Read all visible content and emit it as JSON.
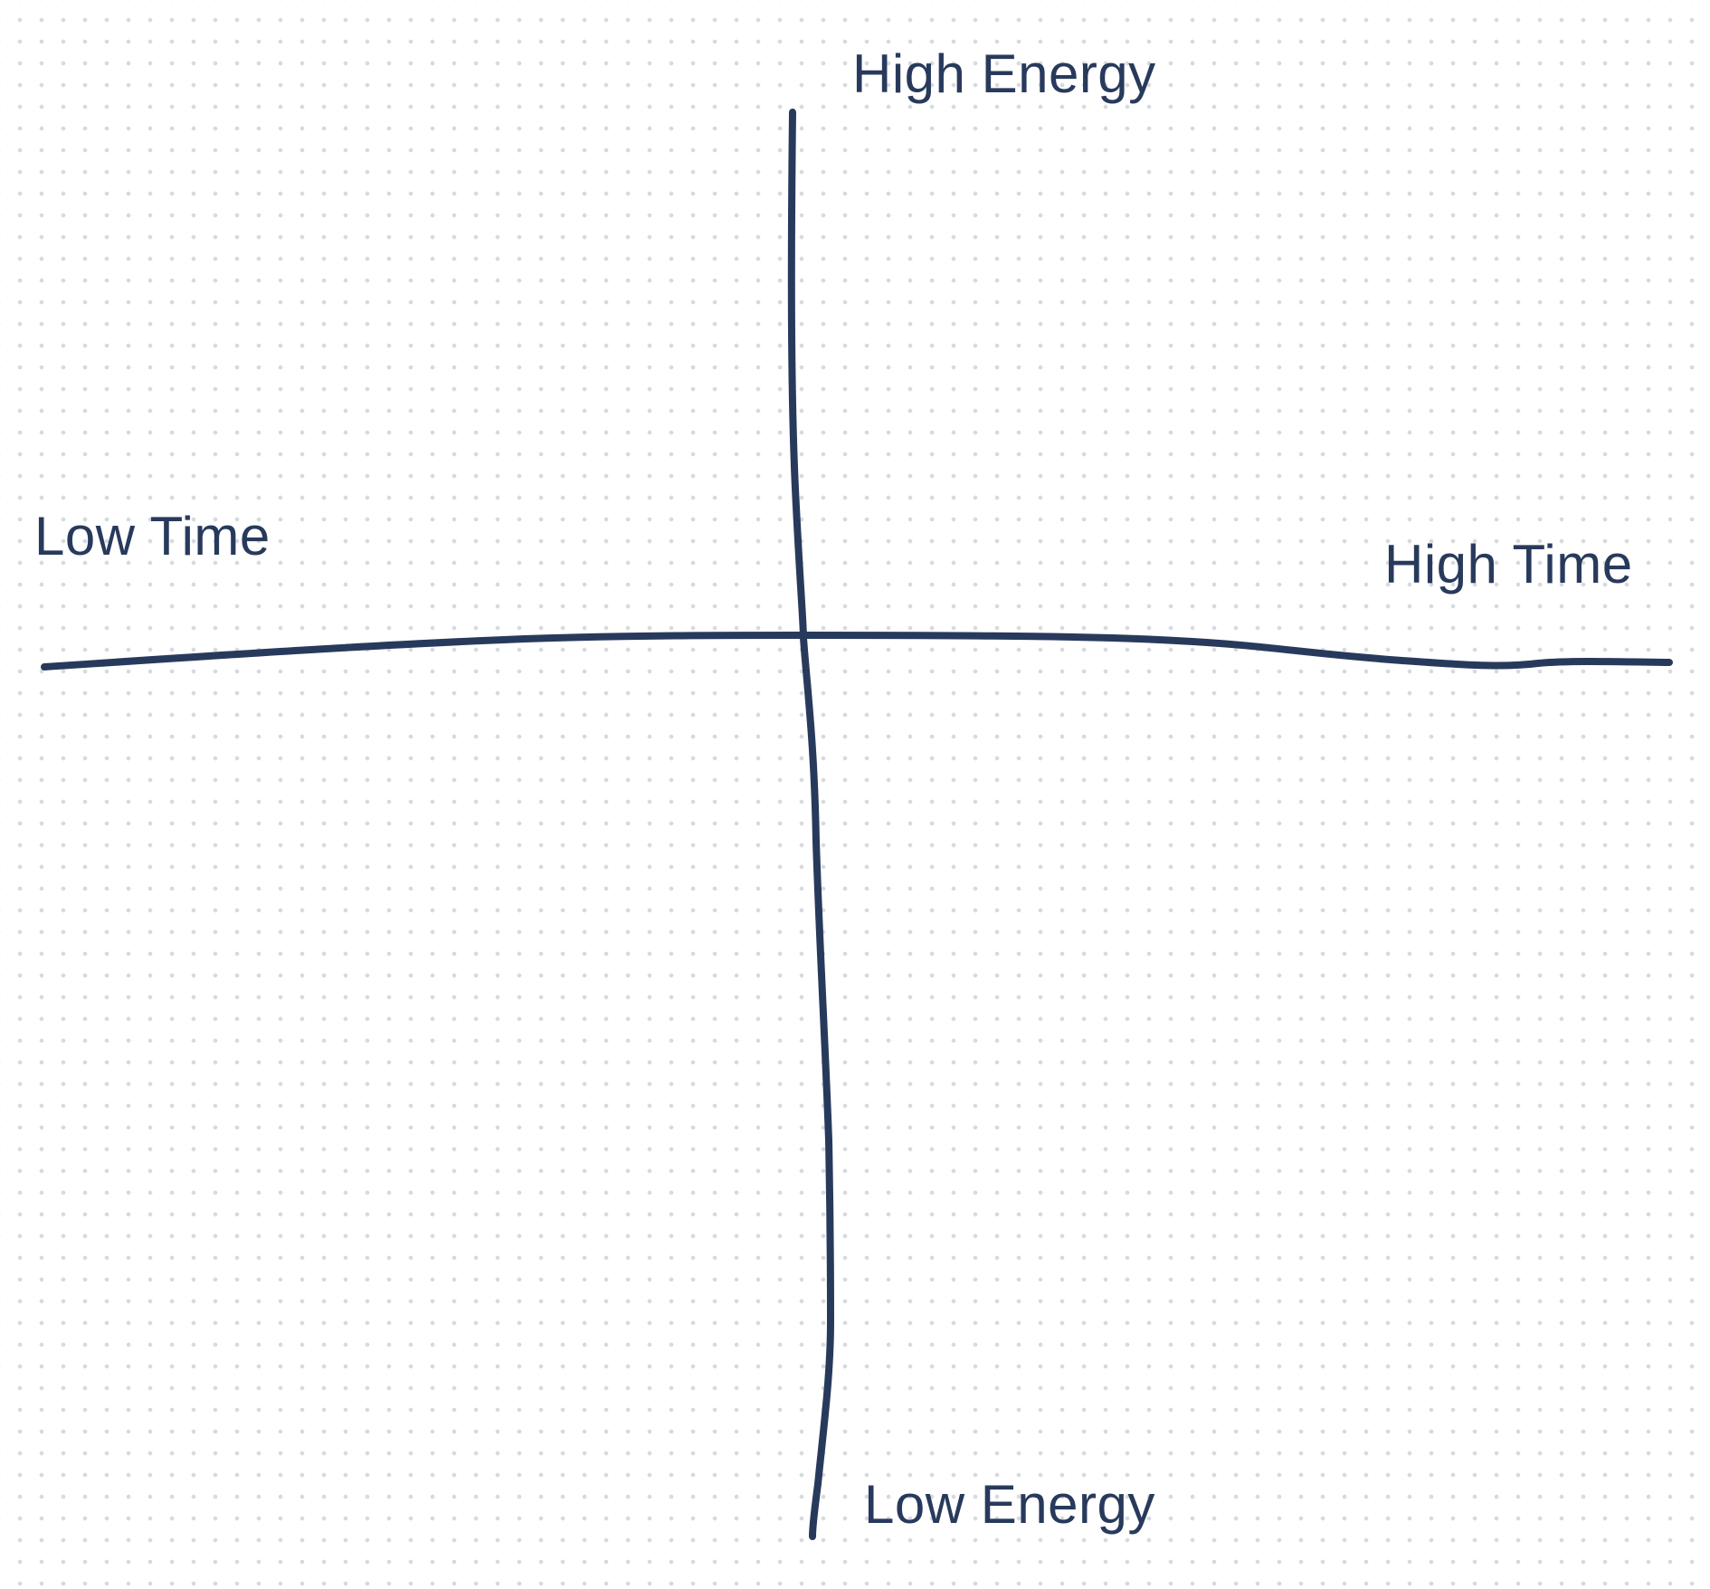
{
  "diagram": {
    "type": "quadrant",
    "labels": {
      "top": "High Energy",
      "bottom": "Low Energy",
      "left": "Low Time",
      "right": "High Time"
    }
  },
  "colors": {
    "ink": "#283a5c",
    "background": "#ffffff",
    "grid_dots": "#d6dae0"
  }
}
